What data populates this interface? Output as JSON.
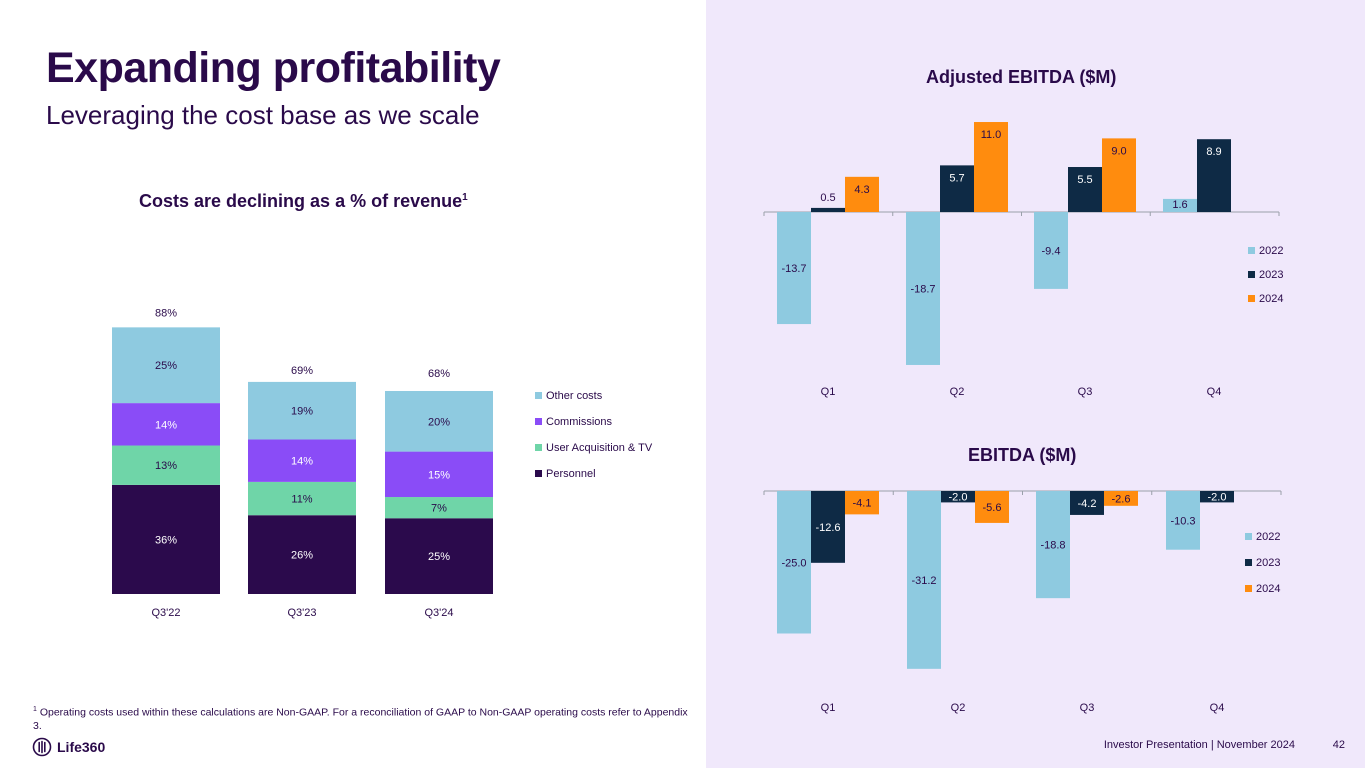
{
  "title": "Expanding profitability",
  "subtitle": "Leveraging the cost base as we scale",
  "colors": {
    "other_costs": "#8ecae0",
    "commissions": "#8a4cf7",
    "user_acq": "#6fd5a8",
    "personnel": "#2b0a4c",
    "y2022": "#8ecae0",
    "y2023": "#0e2a45",
    "y2024": "#ff8c0e"
  },
  "cost_chart": {
    "title": "Costs are declining as a % of revenue",
    "title_sup": "1"
  },
  "ebitda_adj": {
    "title": "Adjusted EBITDA ($M)"
  },
  "ebitda": {
    "title": "EBITDA ($M)"
  },
  "footnote": {
    "sup": "1",
    "text": " Operating costs used within these calculations are Non-GAAP. For a reconciliation of GAAP to Non-GAAP operating costs refer to Appendix 3."
  },
  "logo_text": "Life360",
  "footer": "Investor Presentation  |  November 2024",
  "page_number": "42",
  "chart_data": [
    {
      "type": "stacked-bar",
      "title": "Costs are declining as a % of revenue",
      "categories": [
        "Q3'22",
        "Q3'23",
        "Q3'24"
      ],
      "totals": [
        88,
        69,
        68
      ],
      "total_labels": [
        "88%",
        "69%",
        "68%"
      ],
      "series": [
        {
          "name": "Personnel",
          "values": [
            36,
            26,
            25
          ],
          "labels": [
            "36%",
            "26%",
            "25%"
          ],
          "color": "#2b0a4c",
          "label_color": "#ffffff"
        },
        {
          "name": "User Acquisition & TV",
          "values": [
            13,
            11,
            7
          ],
          "labels": [
            "13%",
            "11%",
            "7%"
          ],
          "color": "#6fd5a8",
          "label_color": "#2a0a4a"
        },
        {
          "name": "Commissions",
          "values": [
            14,
            14,
            15
          ],
          "labels": [
            "14%",
            "14%",
            "15%"
          ],
          "color": "#8a4cf7",
          "label_color": "#ffffff"
        },
        {
          "name": "Other costs",
          "values": [
            25,
            19,
            20
          ],
          "labels": [
            "25%",
            "19%",
            "20%"
          ],
          "color": "#8ecae0",
          "label_color": "#2a0a4a"
        }
      ],
      "legend_order": [
        "Other costs",
        "Commissions",
        "User Acquisition & TV",
        "Personnel"
      ],
      "ylim": [
        0,
        100
      ]
    },
    {
      "type": "bar",
      "title": "Adjusted EBITDA ($M)",
      "categories": [
        "Q1",
        "Q2",
        "Q3",
        "Q4"
      ],
      "series": [
        {
          "name": "2022",
          "values": [
            -13.7,
            -18.7,
            -9.4,
            1.6
          ],
          "labels": [
            "-13.7",
            "-18.7",
            "-9.4",
            "1.6"
          ],
          "color": "#8ecae0"
        },
        {
          "name": "2023",
          "values": [
            0.5,
            5.7,
            5.5,
            8.9
          ],
          "labels": [
            "0.5",
            "5.7",
            "5.5",
            "8.9"
          ],
          "color": "#0e2a45"
        },
        {
          "name": "2024",
          "values": [
            4.3,
            11.0,
            9.0,
            null
          ],
          "labels": [
            "4.3",
            "11.0",
            "9.0",
            null
          ],
          "color": "#ff8c0e"
        }
      ],
      "ylim": [
        -20,
        12
      ]
    },
    {
      "type": "bar",
      "title": "EBITDA ($M)",
      "categories": [
        "Q1",
        "Q2",
        "Q3",
        "Q4"
      ],
      "series": [
        {
          "name": "2022",
          "values": [
            -25.0,
            -31.2,
            -18.8,
            -10.3
          ],
          "labels": [
            "-25.0",
            "-31.2",
            "-18.8",
            "-10.3"
          ],
          "color": "#8ecae0"
        },
        {
          "name": "2023",
          "values": [
            -12.6,
            -2.0,
            -4.2,
            -2.0
          ],
          "labels": [
            "-12.6",
            "-2.0",
            "-4.2",
            "-2.0"
          ],
          "color": "#0e2a45"
        },
        {
          "name": "2024",
          "values": [
            -4.1,
            -5.6,
            -2.6,
            null
          ],
          "labels": [
            "-4.1",
            "-5.6",
            "-2.6",
            null
          ],
          "color": "#ff8c0e"
        }
      ],
      "ylim": [
        -33,
        1
      ]
    }
  ]
}
